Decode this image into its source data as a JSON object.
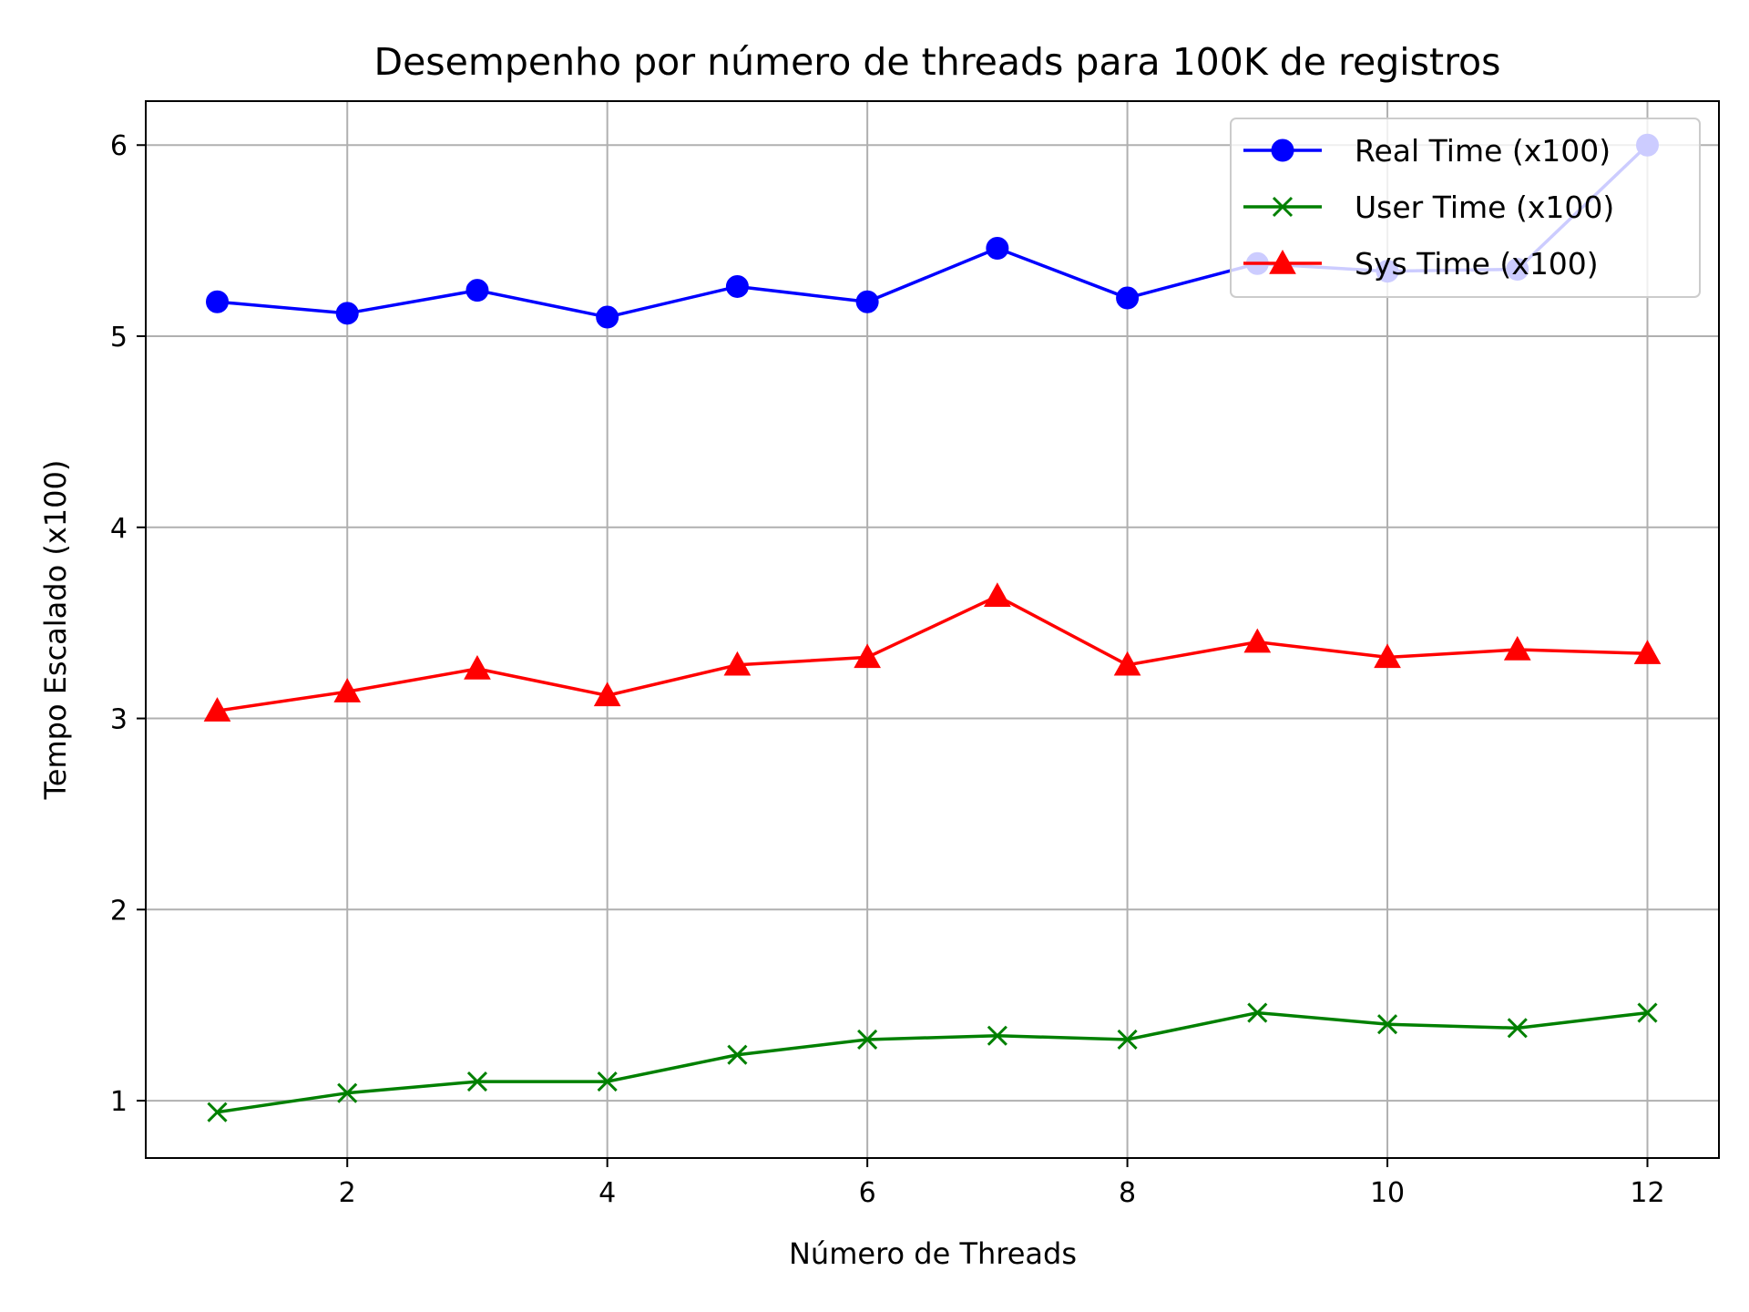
{
  "chart_data": {
    "type": "line",
    "title": "Desempenho por número de threads para 100K de registros",
    "xlabel": "Número de Threads",
    "ylabel": "Tempo Escalado (x100)",
    "x": [
      1,
      2,
      3,
      4,
      5,
      6,
      7,
      8,
      9,
      10,
      11,
      12
    ],
    "xlim": [
      0.45,
      12.55
    ],
    "ylim": [
      0.7,
      6.23
    ],
    "xticks": [
      2,
      4,
      6,
      8,
      10,
      12
    ],
    "xtick_labels": [
      "2",
      "4",
      "6",
      "8",
      "10",
      "12"
    ],
    "yticks": [
      1,
      2,
      3,
      4,
      5,
      6
    ],
    "ytick_labels": [
      "1",
      "2",
      "3",
      "4",
      "5",
      "6"
    ],
    "grid": true,
    "legend_position": "top-right",
    "series": [
      {
        "name": "Real Time (x100)",
        "color": "#0000ff",
        "marker": "circle",
        "values": [
          5.18,
          5.12,
          5.24,
          5.1,
          5.26,
          5.18,
          5.46,
          5.2,
          5.38,
          5.34,
          5.35,
          6.0
        ]
      },
      {
        "name": "User Time (x100)",
        "color": "#008000",
        "marker": "x",
        "values": [
          0.94,
          1.04,
          1.1,
          1.1,
          1.24,
          1.32,
          1.34,
          1.32,
          1.46,
          1.4,
          1.38,
          1.46
        ]
      },
      {
        "name": "Sys Time (x100)",
        "color": "#ff0000",
        "marker": "triangle",
        "values": [
          3.04,
          3.14,
          3.26,
          3.12,
          3.28,
          3.32,
          3.64,
          3.28,
          3.4,
          3.32,
          3.36,
          3.34
        ]
      }
    ]
  }
}
